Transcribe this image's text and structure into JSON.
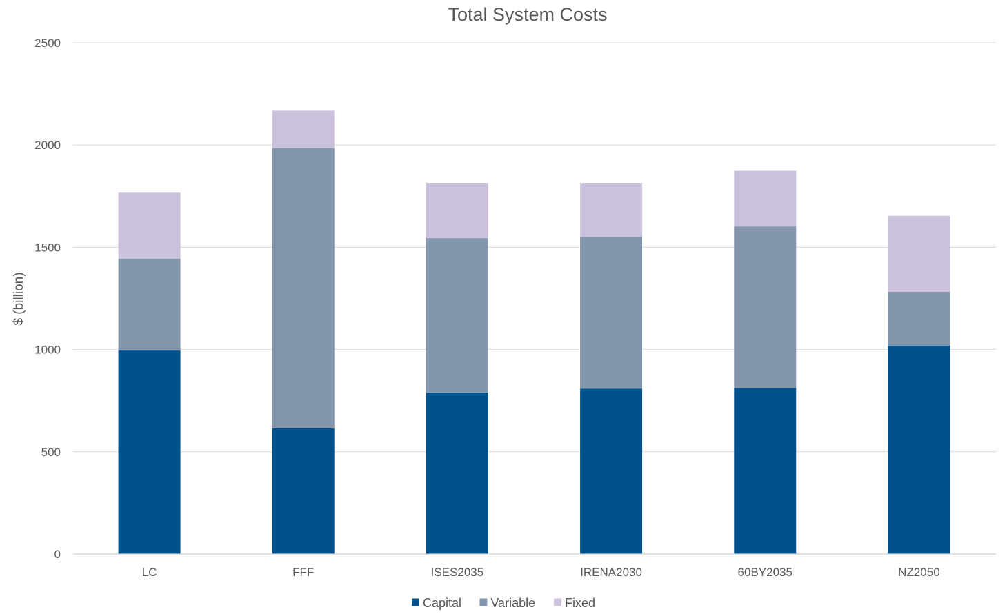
{
  "chart_data": {
    "type": "bar",
    "stacked": true,
    "title": "Total System Costs",
    "xlabel": "",
    "ylabel": "$ (billion)",
    "ylim": [
      0,
      2500
    ],
    "yticks": [
      0,
      500,
      1000,
      1500,
      2000,
      2500
    ],
    "grid": true,
    "legend": "bottom",
    "categories": [
      "LC",
      "FFF",
      "ISES2035",
      "IRENA2030",
      "60BY2035",
      "NZ2050"
    ],
    "series": [
      {
        "name": "Capital",
        "color": "#00528c",
        "values": [
          995,
          615,
          790,
          808,
          812,
          1020
        ]
      },
      {
        "name": "Variable",
        "color": "#8396ae",
        "values": [
          450,
          1370,
          755,
          742,
          790,
          262
        ]
      },
      {
        "name": "Fixed",
        "color": "#ccc1db",
        "values": [
          322,
          183,
          270,
          265,
          272,
          372
        ]
      }
    ]
  }
}
